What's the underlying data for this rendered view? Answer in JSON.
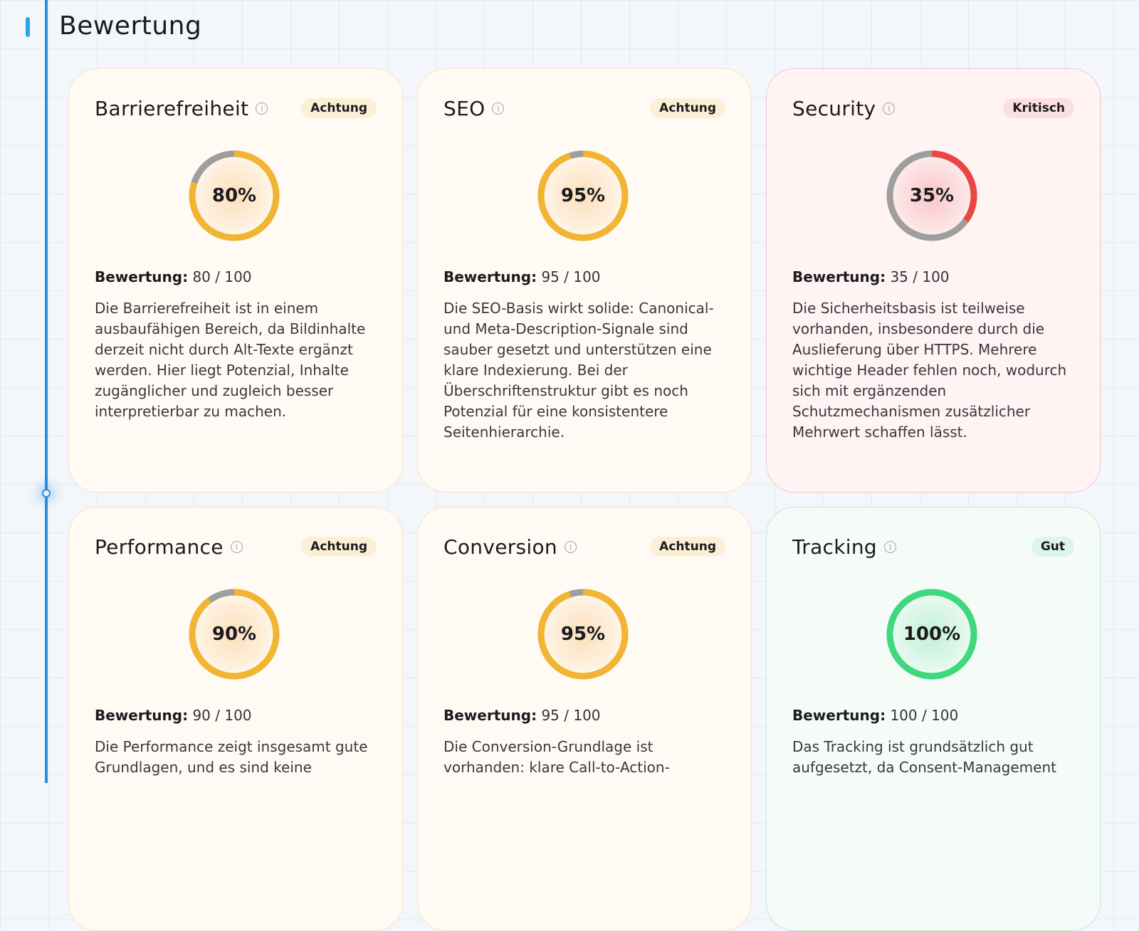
{
  "section": {
    "title": "Bewertung"
  },
  "cards": [
    {
      "title": "Barrierefreiheit",
      "badge": "Achtung",
      "state": "warn",
      "score": 80,
      "score_display": "80%",
      "score_label": "Bewertung:",
      "score_text": "80 / 100",
      "description": "Die Barrierefreiheit ist in einem ausbaufähigen Bereich, da Bildinhalte derzeit nicht durch Alt-Texte ergänzt werden. Hier liegt Potenzial, Inhalte zugänglicher und zugleich besser interpretierbar zu machen."
    },
    {
      "title": "SEO",
      "badge": "Achtung",
      "state": "warn",
      "score": 95,
      "score_display": "95%",
      "score_label": "Bewertung:",
      "score_text": "95 / 100",
      "description": "Die SEO-Basis wirkt solide: Canonical- und Meta-Description-Signale sind sauber gesetzt und unterstützen eine klare Indexierung. Bei der Überschriftenstruktur gibt es noch Potenzial für eine konsistentere Seitenhierarchie."
    },
    {
      "title": "Security",
      "badge": "Kritisch",
      "state": "critical",
      "score": 35,
      "score_display": "35%",
      "score_label": "Bewertung:",
      "score_text": "35 / 100",
      "description": "Die Sicherheitsbasis ist teilweise vorhanden, insbesondere durch die Auslieferung über HTTPS. Mehrere wichtige Header fehlen noch, wodurch sich mit ergänzenden Schutzmechanismen zusätzlicher Mehrwert schaffen lässt."
    },
    {
      "title": "Performance",
      "badge": "Achtung",
      "state": "warn",
      "score": 90,
      "score_display": "90%",
      "score_label": "Bewertung:",
      "score_text": "90 / 100",
      "description": "Die Performance zeigt insgesamt gute Grundlagen, und es sind keine"
    },
    {
      "title": "Conversion",
      "badge": "Achtung",
      "state": "warn",
      "score": 95,
      "score_display": "95%",
      "score_label": "Bewertung:",
      "score_text": "95 / 100",
      "description": "Die Conversion-Grundlage ist vorhanden: klare Call-to-Action-"
    },
    {
      "title": "Tracking",
      "badge": "Gut",
      "state": "good",
      "score": 100,
      "score_display": "100%",
      "score_label": "Bewertung:",
      "score_text": "100 / 100",
      "description": "Das Tracking ist grundsätzlich gut aufgesetzt, da Consent-Management"
    }
  ],
  "colors": {
    "warn": "#f2b431",
    "critical": "#ea4643",
    "good": "#3fd97d",
    "track": "#9e9e9e",
    "timeline": "#2a8fe0"
  }
}
